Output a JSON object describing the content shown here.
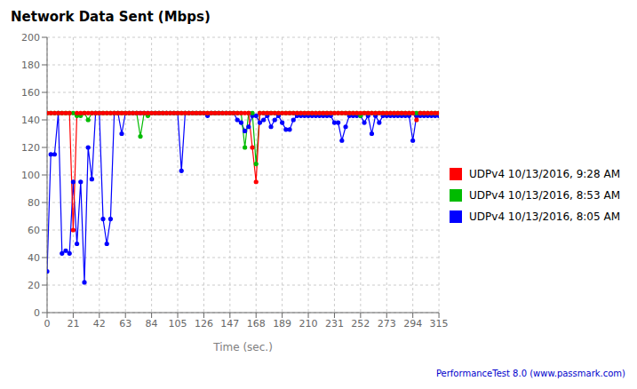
{
  "chart_data": {
    "type": "line",
    "title": "Network Data Sent (Mbps)",
    "xlabel": "Time (sec.)",
    "annotations": [
      "PerformanceTest 8.0 (www.passmark.com)"
    ],
    "xlim": [
      0,
      315
    ],
    "ylim": [
      0,
      200
    ],
    "xticks": [
      0,
      21,
      42,
      63,
      84,
      105,
      126,
      147,
      168,
      189,
      210,
      231,
      252,
      273,
      294,
      315
    ],
    "yticks": [
      0,
      20,
      40,
      60,
      80,
      100,
      120,
      140,
      160,
      180,
      200
    ],
    "grid": true,
    "legend": "right",
    "marker": "circle",
    "x": [
      0,
      3,
      6,
      9,
      12,
      15,
      18,
      21,
      24,
      27,
      30,
      33,
      36,
      39,
      42,
      45,
      48,
      51,
      54,
      57,
      60,
      63,
      66,
      69,
      72,
      75,
      78,
      81,
      84,
      87,
      90,
      93,
      96,
      99,
      102,
      105,
      108,
      111,
      114,
      117,
      120,
      123,
      126,
      129,
      132,
      135,
      138,
      141,
      144,
      147,
      150,
      153,
      156,
      159,
      162,
      165,
      168,
      171,
      174,
      177,
      180,
      183,
      186,
      189,
      192,
      195,
      198,
      201,
      204,
      207,
      210,
      213,
      216,
      219,
      222,
      225,
      228,
      231,
      234,
      237,
      240,
      243,
      246,
      249,
      252,
      255,
      258,
      261,
      264,
      267,
      270,
      273,
      276,
      279,
      282,
      285,
      288,
      291,
      294,
      297,
      300,
      303,
      306,
      309,
      312,
      315
    ],
    "series": [
      {
        "name": "UDPv4 10/13/2016, 9:28 AM",
        "color": "#ff0000",
        "values": [
          145,
          145,
          145,
          145,
          145,
          145,
          145,
          60,
          145,
          145,
          145,
          145,
          145,
          145,
          145,
          145,
          145,
          145,
          145,
          145,
          145,
          145,
          145,
          145,
          145,
          145,
          145,
          145,
          145,
          145,
          145,
          145,
          145,
          145,
          145,
          145,
          145,
          145,
          145,
          145,
          145,
          145,
          145,
          145,
          145,
          145,
          145,
          145,
          145,
          145,
          145,
          145,
          145,
          145,
          145,
          120,
          95,
          145,
          145,
          145,
          145,
          145,
          145,
          145,
          145,
          145,
          145,
          145,
          145,
          145,
          145,
          145,
          145,
          145,
          145,
          145,
          145,
          145,
          145,
          145,
          145,
          145,
          145,
          145,
          145,
          145,
          145,
          145,
          145,
          145,
          145,
          145,
          145,
          145,
          145,
          145,
          145,
          145,
          145,
          140,
          145,
          145,
          145,
          145,
          145,
          145
        ]
      },
      {
        "name": "UDPv4 10/13/2016, 8:53 AM",
        "color": "#00bb00",
        "values": [
          145,
          145,
          145,
          145,
          145,
          145,
          145,
          145,
          143,
          143,
          145,
          140,
          145,
          145,
          145,
          145,
          145,
          145,
          145,
          145,
          145,
          145,
          145,
          145,
          145,
          128,
          145,
          143,
          145,
          145,
          145,
          145,
          145,
          145,
          145,
          145,
          145,
          145,
          145,
          145,
          145,
          145,
          145,
          145,
          145,
          145,
          145,
          145,
          145,
          145,
          145,
          145,
          145,
          120,
          145,
          145,
          108,
          145,
          145,
          145,
          145,
          145,
          145,
          145,
          145,
          145,
          145,
          145,
          145,
          145,
          145,
          145,
          145,
          145,
          145,
          145,
          145,
          145,
          145,
          145,
          145,
          145,
          145,
          145,
          143,
          145,
          145,
          145,
          145,
          145,
          145,
          145,
          145,
          145,
          145,
          145,
          145,
          145,
          145,
          145,
          145,
          145,
          145,
          145,
          145,
          145
        ]
      },
      {
        "name": "UDPv4 10/13/2016, 8:05 AM",
        "color": "#0000ff",
        "values": [
          30,
          115,
          115,
          145,
          43,
          45,
          43,
          95,
          50,
          95,
          22,
          120,
          97,
          145,
          145,
          68,
          50,
          68,
          145,
          145,
          130,
          145,
          145,
          145,
          145,
          145,
          145,
          145,
          145,
          145,
          145,
          145,
          145,
          145,
          145,
          145,
          103,
          145,
          145,
          145,
          145,
          145,
          145,
          143,
          145,
          145,
          145,
          145,
          145,
          145,
          145,
          140,
          138,
          132,
          135,
          143,
          143,
          138,
          140,
          143,
          135,
          140,
          143,
          138,
          133,
          133,
          140,
          143,
          143,
          143,
          143,
          143,
          143,
          143,
          143,
          143,
          143,
          138,
          138,
          125,
          135,
          143,
          143,
          143,
          143,
          138,
          143,
          130,
          143,
          138,
          143,
          143,
          143,
          143,
          143,
          143,
          143,
          143,
          125,
          143,
          143,
          143,
          143,
          143,
          143,
          143
        ]
      }
    ]
  }
}
